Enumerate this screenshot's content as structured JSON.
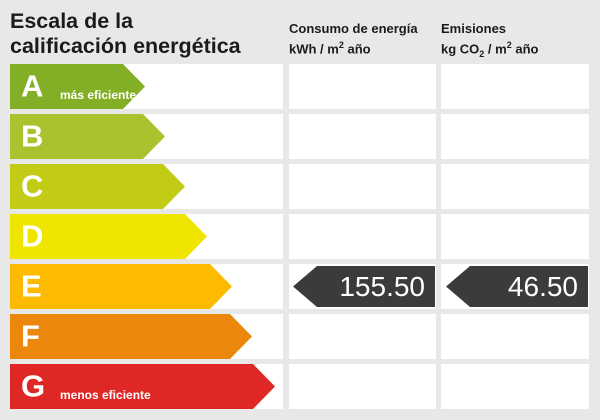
{
  "header": {
    "title_line1": "Escala de la",
    "title_line2": "calificación energética",
    "consumo": {
      "title": "Consumo de energía",
      "unit_a": "kWh / m",
      "unit_sup": "2",
      "unit_b": " año"
    },
    "emisiones": {
      "title": "Emisiones",
      "unit_a": "kg CO",
      "unit_sub": "2",
      "unit_b": " / m",
      "unit_sup": "2",
      "unit_c": " año"
    }
  },
  "scale": {
    "rows": [
      {
        "letter": "A",
        "label": "más eficiente",
        "color": "#82af25"
      },
      {
        "letter": "B",
        "label": "",
        "color": "#a9c32e"
      },
      {
        "letter": "C",
        "label": "",
        "color": "#c2cb15"
      },
      {
        "letter": "D",
        "label": "",
        "color": "#f0e500"
      },
      {
        "letter": "E",
        "label": "",
        "color": "#fcba00"
      },
      {
        "letter": "F",
        "label": "",
        "color": "#eb870d"
      },
      {
        "letter": "G",
        "label": "menos eficiente",
        "color": "#df2826"
      }
    ]
  },
  "values": {
    "rating_row": "E",
    "consumo": "155.50",
    "emisiones": "46.50",
    "arrow_color": "#3b3b3a"
  },
  "colors": {
    "background": "#e8e8e8",
    "cell": "#ffffff",
    "text": "#1b1b1a"
  }
}
